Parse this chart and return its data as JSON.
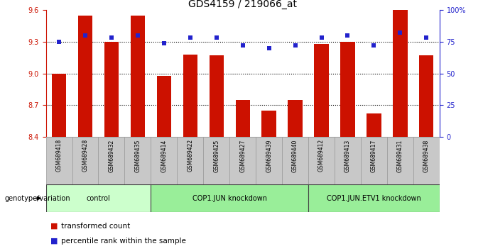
{
  "title": "GDS4159 / 219066_at",
  "samples": [
    "GSM689418",
    "GSM689428",
    "GSM689432",
    "GSM689435",
    "GSM689414",
    "GSM689422",
    "GSM689425",
    "GSM689427",
    "GSM689439",
    "GSM689440",
    "GSM689412",
    "GSM689413",
    "GSM689417",
    "GSM689431",
    "GSM689438"
  ],
  "bar_values": [
    9.0,
    9.55,
    9.3,
    9.55,
    8.98,
    9.18,
    9.17,
    8.75,
    8.65,
    8.75,
    9.28,
    9.3,
    8.62,
    9.6,
    9.17
  ],
  "percentile_values": [
    75,
    80,
    78,
    80,
    74,
    78,
    78,
    72,
    70,
    72,
    78,
    80,
    72,
    82,
    78
  ],
  "groups": [
    {
      "label": "control",
      "start": 0,
      "end": 4
    },
    {
      "label": "COP1.JUN knockdown",
      "start": 4,
      "end": 10
    },
    {
      "label": "COP1.JUN.ETV1 knockdown",
      "start": 10,
      "end": 15
    }
  ],
  "bar_color": "#cc1100",
  "percentile_color": "#2222cc",
  "ylim_left": [
    8.4,
    9.6
  ],
  "ylim_right": [
    0,
    100
  ],
  "yticks_left": [
    8.4,
    8.7,
    9.0,
    9.3,
    9.6
  ],
  "yticks_right": [
    0,
    25,
    50,
    75,
    100
  ],
  "ytick_labels_right": [
    "0",
    "25",
    "50",
    "75",
    "100%"
  ],
  "hlines": [
    8.7,
    9.0,
    9.3
  ],
  "xlabel": "genotype/variation",
  "legend_bar": "transformed count",
  "legend_percentile": "percentile rank within the sample",
  "bar_width": 0.55,
  "group_colors": [
    "#ccffcc",
    "#99ee99",
    "#66dd66"
  ],
  "title_fontsize": 10,
  "tick_fontsize": 7,
  "sample_fontsize": 5.5,
  "group_fontsize": 7,
  "legend_fontsize": 7.5
}
